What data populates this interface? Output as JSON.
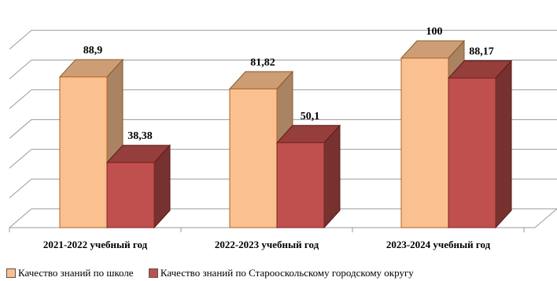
{
  "chart_data": {
    "type": "bar",
    "categories": [
      "2021-2022 учебный год",
      "2022-2023 учебный год",
      "2023-2024 учебный год"
    ],
    "series": [
      {
        "name": "Качество знаний по школе",
        "values": [
          88.9,
          81.82,
          100
        ],
        "labels": [
          "88,9",
          "81,82",
          "100"
        ],
        "color": "#FAC090"
      },
      {
        "name": "Качество знаний по Старооскольскому городскому округу",
        "values": [
          38.38,
          50.1,
          88.17
        ],
        "labels": [
          "38,38",
          "50,1",
          "88,17"
        ],
        "color": "#C0504D"
      }
    ],
    "ylim": [
      0,
      100
    ],
    "grid": true,
    "legend_position": "bottom",
    "three_d": true
  }
}
